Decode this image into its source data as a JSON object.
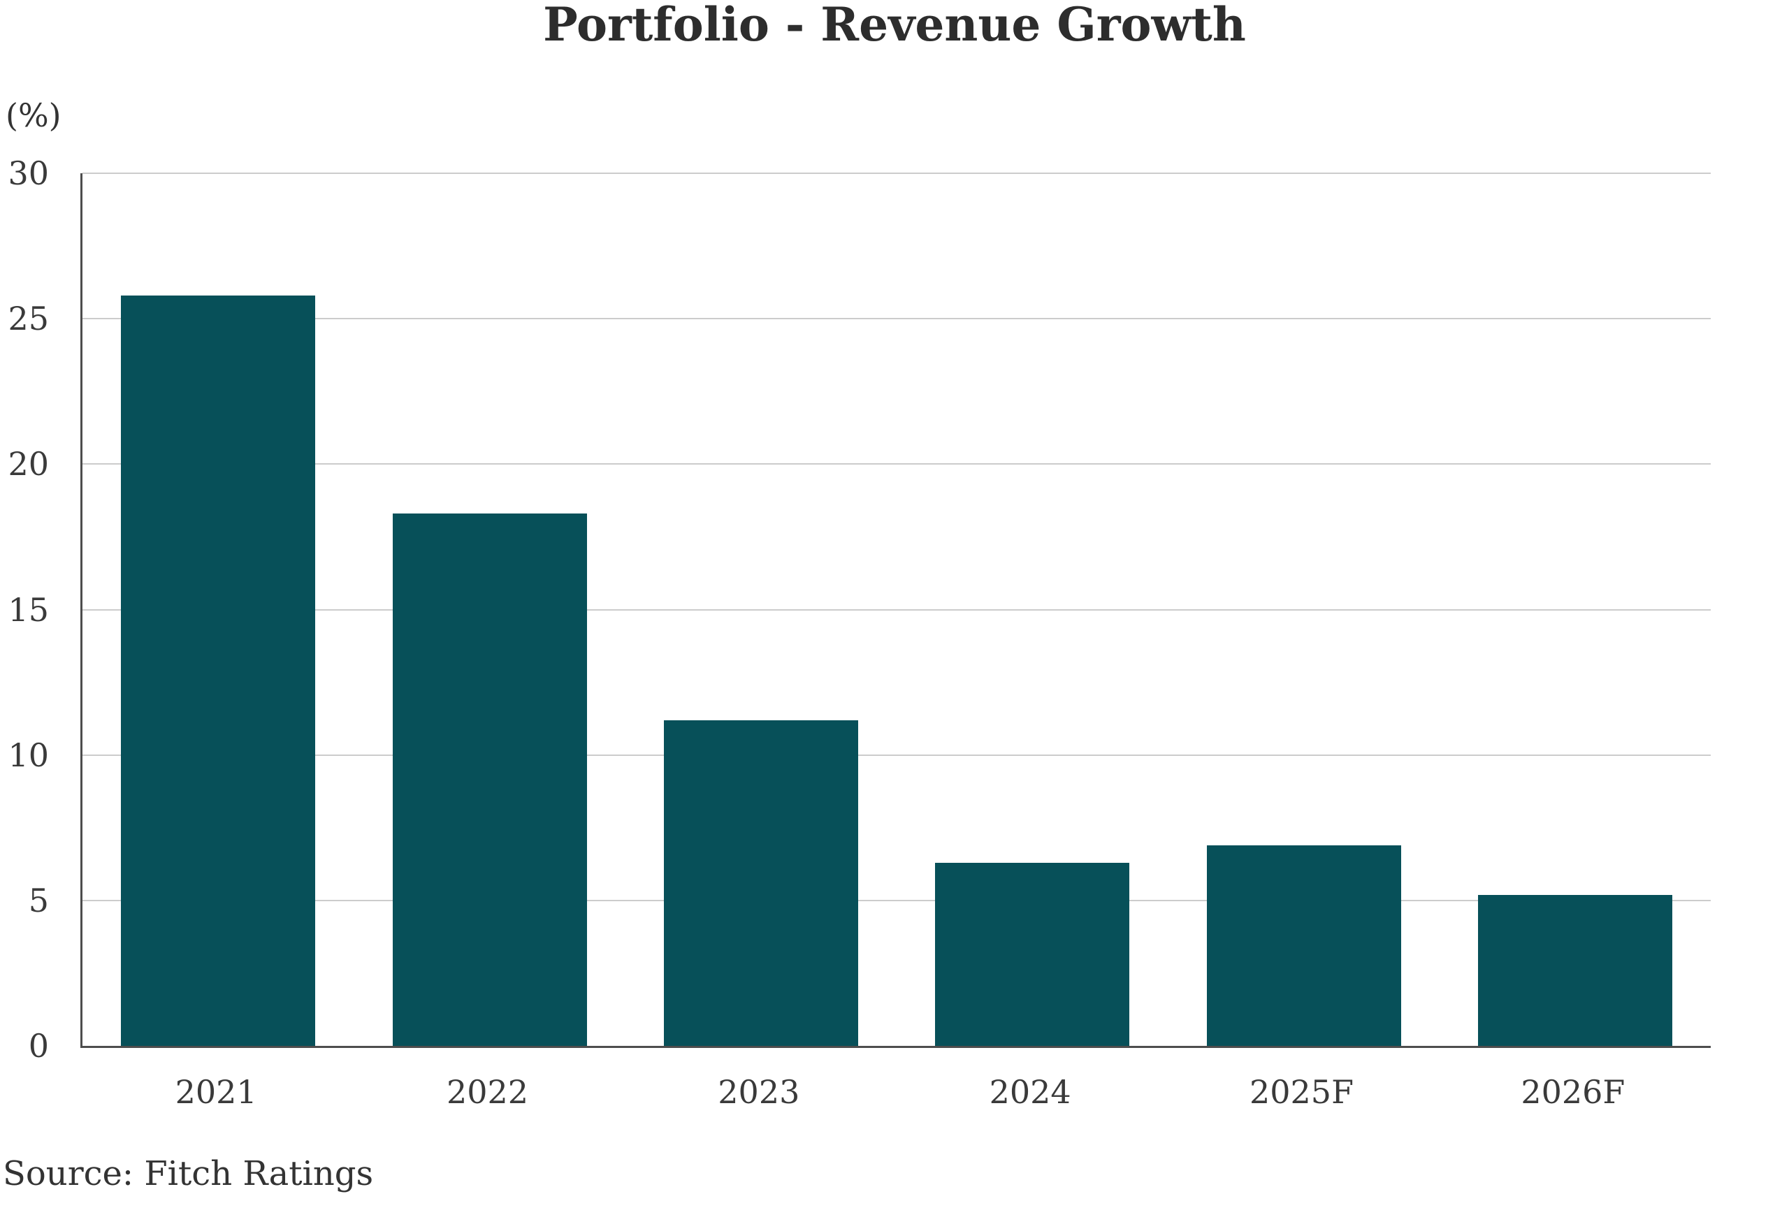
{
  "chart_data": {
    "type": "bar",
    "title": "Portfolio - Revenue Growth",
    "unit_label": "(%)",
    "categories": [
      "2021",
      "2022",
      "2023",
      "2024",
      "2025F",
      "2026F"
    ],
    "values": [
      25.8,
      18.3,
      11.2,
      6.3,
      6.9,
      5.2
    ],
    "ylim": [
      0,
      30
    ],
    "yticks": [
      0,
      5,
      10,
      15,
      20,
      25,
      30
    ],
    "grid": "horizontal-on",
    "legend_position": "none",
    "source": "Source: Fitch Ratings"
  },
  "colors": {
    "bar_fill": "#075059",
    "gridline": "#cccccc",
    "axis_line": "#4d4d4d",
    "title_text": "#2d2d2d",
    "tick_text": "#3a3a3a"
  }
}
